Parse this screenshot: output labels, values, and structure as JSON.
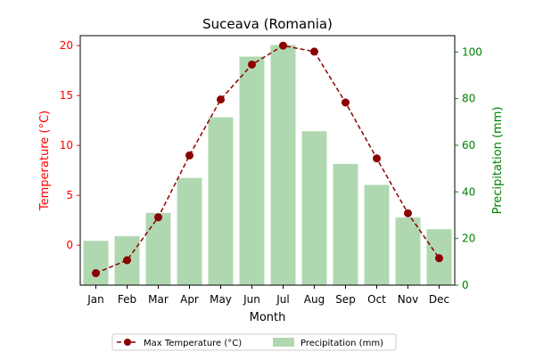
{
  "chart_data": {
    "type": "bar+line",
    "title": "Suceava (Romania)",
    "xlabel": "Month",
    "ylabel_left": "Temperature (°C)",
    "ylabel_right": "Precipitation (mm)",
    "categories": [
      "Jan",
      "Feb",
      "Mar",
      "Apr",
      "May",
      "Jun",
      "Jul",
      "Aug",
      "Sep",
      "Oct",
      "Nov",
      "Dec"
    ],
    "ylim_left": [
      -4,
      21
    ],
    "yticks_left": [
      0,
      5,
      10,
      15,
      20
    ],
    "ylim_right": [
      0,
      107
    ],
    "yticks_right": [
      0,
      20,
      40,
      60,
      80,
      100
    ],
    "grid": false,
    "legend_position": "bottom-center",
    "colors": {
      "temperature": "#8b0000",
      "precipitation": "#b0d8b0",
      "left_axis": "#ff0000",
      "right_axis": "#008000"
    },
    "series": [
      {
        "name": "Max Temperature (°C)",
        "axis": "left",
        "type": "line",
        "style": "dashed-with-markers",
        "values": [
          -2.8,
          -1.5,
          2.8,
          9.0,
          14.6,
          18.1,
          20.0,
          19.4,
          14.3,
          8.7,
          3.2,
          -1.3
        ]
      },
      {
        "name": "Precipitation (mm)",
        "axis": "right",
        "type": "bar",
        "values": [
          19,
          21,
          31,
          46,
          72,
          98,
          103,
          66,
          52,
          43,
          29,
          24
        ]
      }
    ]
  }
}
